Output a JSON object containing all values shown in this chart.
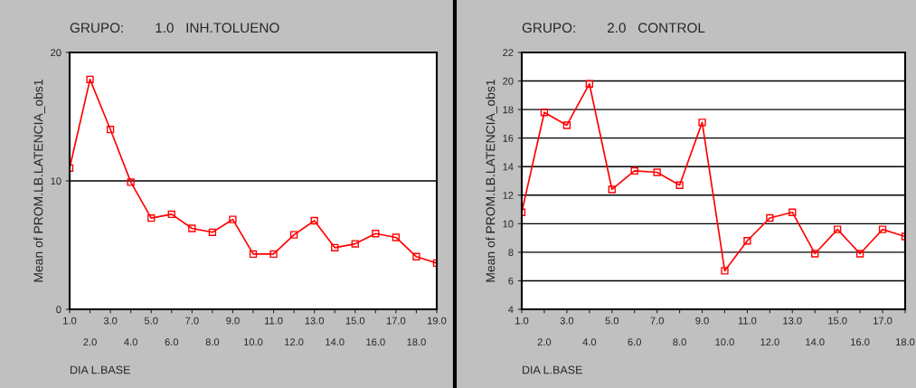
{
  "chart_data": [
    {
      "type": "line",
      "title": "GRUPO:        1.0   INH.TOLUENO",
      "xlabel": "DIA L.BASE",
      "ylabel": "Mean of PROM.LB.LATENCIA_obs1",
      "categories": [
        "1.0",
        "2.0",
        "3.0",
        "4.0",
        "5.0",
        "6.0",
        "7.0",
        "8.0",
        "9.0",
        "10.0",
        "11.0",
        "12.0",
        "13.0",
        "14.0",
        "15.0",
        "16.0",
        "17.0",
        "18.0",
        "19.0"
      ],
      "series": [
        {
          "color": "#ff0000",
          "values": [
            11.0,
            17.9,
            14.0,
            9.9,
            7.1,
            7.4,
            6.3,
            6.0,
            7.0,
            4.3,
            4.3,
            5.8,
            6.9,
            4.8,
            5.1,
            5.9,
            5.6,
            4.1,
            3.6
          ]
        }
      ],
      "ylim": [
        0,
        20
      ],
      "yticks": [
        0,
        10,
        20
      ],
      "grid": "y",
      "marker": "square",
      "line_style": "solid",
      "legend": false
    },
    {
      "type": "line",
      "title": "GRUPO:        2.0   CONTROL",
      "xlabel": "DIA L.BASE",
      "ylabel": "Mean of PROM.LB.LATENCIA_obs1",
      "categories": [
        "1.0",
        "2.0",
        "3.0",
        "4.0",
        "5.0",
        "6.0",
        "7.0",
        "8.0",
        "9.0",
        "10.0",
        "11.0",
        "12.0",
        "13.0",
        "14.0",
        "15.0",
        "16.0",
        "17.0",
        "18.0"
      ],
      "series": [
        {
          "color": "#ff0000",
          "values": [
            10.8,
            17.8,
            16.9,
            19.8,
            12.4,
            13.7,
            13.6,
            12.7,
            17.1,
            6.7,
            8.8,
            10.4,
            10.8,
            7.9,
            9.6,
            7.9,
            9.6,
            9.1
          ]
        }
      ],
      "ylim": [
        4,
        22
      ],
      "yticks": [
        4,
        6,
        8,
        10,
        12,
        14,
        16,
        18,
        20,
        22
      ],
      "grid": "y",
      "marker": "square",
      "line_style": "solid",
      "legend": false
    }
  ]
}
